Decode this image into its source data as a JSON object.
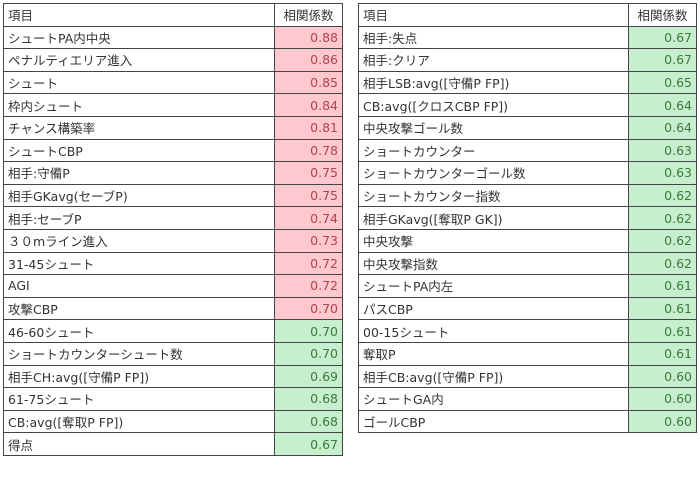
{
  "colors": {
    "high_bg": "#ffc7ce",
    "high_text": "#b0444c",
    "mid_bg": "#c6efce",
    "mid_text": "#3c7a3c"
  },
  "tables": [
    {
      "header": {
        "item": "項目",
        "corr": "相関係数"
      },
      "rows": [
        {
          "item": "シュートPA内中央",
          "corr": "0.88",
          "level": "red"
        },
        {
          "item": "ペナルティエリア進入",
          "corr": "0.86",
          "level": "red"
        },
        {
          "item": "シュート",
          "corr": "0.85",
          "level": "red"
        },
        {
          "item": "枠内シュート",
          "corr": "0.84",
          "level": "red"
        },
        {
          "item": "チャンス構築率",
          "corr": "0.81",
          "level": "red"
        },
        {
          "item": "シュートCBP",
          "corr": "0.78",
          "level": "red"
        },
        {
          "item": "相手:守備P",
          "corr": "0.75",
          "level": "red"
        },
        {
          "item": "相手GKavg(セーブP)",
          "corr": "0.75",
          "level": "red"
        },
        {
          "item": "相手:セーブP",
          "corr": "0.74",
          "level": "red"
        },
        {
          "item": "３０mライン進入",
          "corr": "0.73",
          "level": "red"
        },
        {
          "item": "31-45シュート",
          "corr": "0.72",
          "level": "red"
        },
        {
          "item": "AGI",
          "corr": "0.72",
          "level": "red"
        },
        {
          "item": "攻撃CBP",
          "corr": "0.70",
          "level": "red"
        },
        {
          "item": "46-60シュート",
          "corr": "0.70",
          "level": "green"
        },
        {
          "item": "ショートカウンターシュート数",
          "corr": "0.70",
          "level": "green"
        },
        {
          "item": "相手CH:avg([守備P FP])",
          "corr": "0.69",
          "level": "green"
        },
        {
          "item": "61-75シュート",
          "corr": "0.68",
          "level": "green"
        },
        {
          "item": "CB:avg([奪取P FP])",
          "corr": "0.68",
          "level": "green"
        },
        {
          "item": "得点",
          "corr": "0.67",
          "level": "green"
        }
      ]
    },
    {
      "header": {
        "item": "項目",
        "corr": "相関係数"
      },
      "rows": [
        {
          "item": "相手:失点",
          "corr": "0.67",
          "level": "green"
        },
        {
          "item": "相手:クリア",
          "corr": "0.67",
          "level": "green"
        },
        {
          "item": "相手LSB:avg([守備P FP])",
          "corr": "0.65",
          "level": "green"
        },
        {
          "item": "CB:avg([クロスCBP FP])",
          "corr": "0.64",
          "level": "green"
        },
        {
          "item": "中央攻撃ゴール数",
          "corr": "0.64",
          "level": "green"
        },
        {
          "item": "ショートカウンター",
          "corr": "0.63",
          "level": "green"
        },
        {
          "item": "ショートカウンターゴール数",
          "corr": "0.63",
          "level": "green"
        },
        {
          "item": "ショートカウンター指数",
          "corr": "0.62",
          "level": "green"
        },
        {
          "item": "相手GKavg([奪取P GK])",
          "corr": "0.62",
          "level": "green"
        },
        {
          "item": "中央攻撃",
          "corr": "0.62",
          "level": "green"
        },
        {
          "item": "中央攻撃指数",
          "corr": "0.62",
          "level": "green"
        },
        {
          "item": "シュートPA内左",
          "corr": "0.61",
          "level": "green"
        },
        {
          "item": "パスCBP",
          "corr": "0.61",
          "level": "green"
        },
        {
          "item": "00-15シュート",
          "corr": "0.61",
          "level": "green"
        },
        {
          "item": "奪取P",
          "corr": "0.61",
          "level": "green"
        },
        {
          "item": "相手CB:avg([守備P FP])",
          "corr": "0.60",
          "level": "green"
        },
        {
          "item": "シュートGA内",
          "corr": "0.60",
          "level": "green"
        },
        {
          "item": "ゴールCBP",
          "corr": "0.60",
          "level": "green"
        }
      ]
    }
  ]
}
